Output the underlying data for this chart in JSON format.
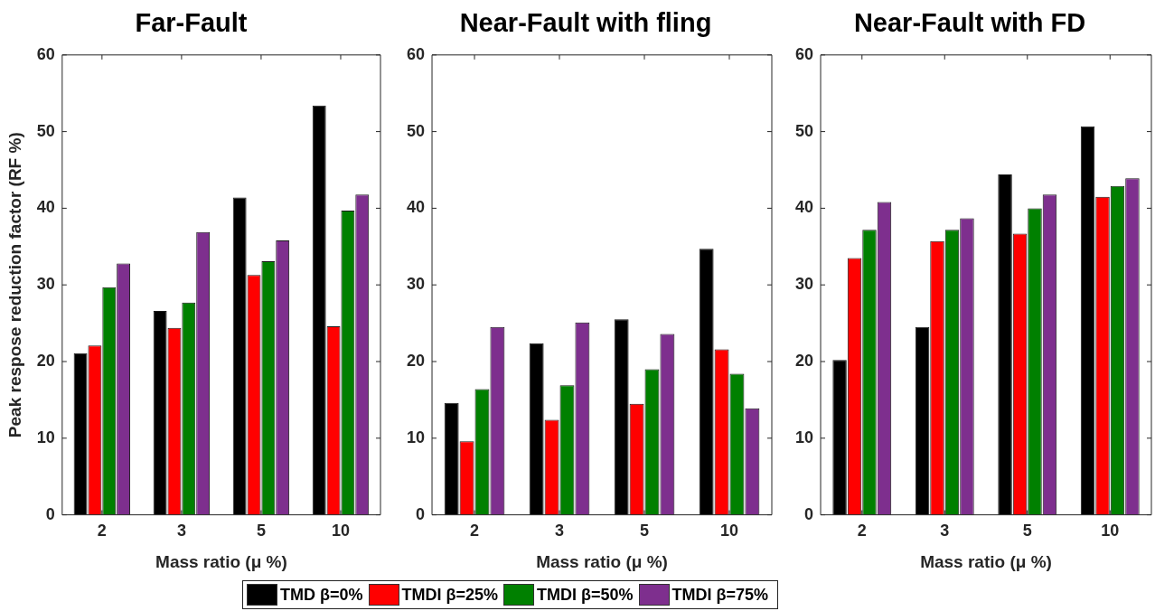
{
  "chart_data": [
    {
      "type": "bar",
      "title": "Far-Fault",
      "xlabel": "Mass ratio (μ %)",
      "ylabel": "Peak respose reduction factor (RF %)",
      "categories": [
        "2",
        "3",
        "5",
        "10"
      ],
      "ylim": [
        0,
        60
      ],
      "yticks": [
        0,
        10,
        20,
        30,
        40,
        50,
        60
      ],
      "grid": false,
      "legend": "bottom",
      "series": [
        {
          "name": "TMD β=0%",
          "color": "#000000",
          "values": [
            21.1,
            26.6,
            41.4,
            53.4
          ]
        },
        {
          "name": "TMDI β=25%",
          "color": "#ff0000",
          "values": [
            22.1,
            24.4,
            31.3,
            24.6
          ]
        },
        {
          "name": "TMDI β=50%",
          "color": "#008000",
          "values": [
            29.7,
            27.7,
            33.1,
            39.7
          ]
        },
        {
          "name": "TMDI β=75%",
          "color": "#7e2f8e",
          "values": [
            32.8,
            36.9,
            35.8,
            41.8
          ]
        }
      ]
    },
    {
      "type": "bar",
      "title": "Near-Fault with fling",
      "xlabel": "Mass ratio (μ %)",
      "categories": [
        "2",
        "3",
        "5",
        "10"
      ],
      "ylim": [
        0,
        60
      ],
      "yticks": [
        0,
        10,
        20,
        30,
        40,
        50,
        60
      ],
      "grid": false,
      "series": [
        {
          "color": "#000000",
          "values": [
            14.6,
            22.4,
            25.5,
            34.7
          ]
        },
        {
          "color": "#ff0000",
          "values": [
            9.6,
            12.4,
            14.5,
            21.6
          ]
        },
        {
          "color": "#008000",
          "values": [
            16.4,
            16.9,
            19.0,
            18.4
          ]
        },
        {
          "color": "#7e2f8e",
          "values": [
            24.5,
            25.1,
            23.6,
            13.9
          ]
        }
      ]
    },
    {
      "type": "bar",
      "title": "Near-Fault with FD",
      "xlabel": "Mass ratio (μ %)",
      "categories": [
        "2",
        "3",
        "5",
        "10"
      ],
      "ylim": [
        0,
        60
      ],
      "yticks": [
        0,
        10,
        20,
        30,
        40,
        50,
        60
      ],
      "grid": false,
      "series": [
        {
          "color": "#000000",
          "values": [
            20.2,
            24.5,
            44.4,
            50.7
          ]
        },
        {
          "color": "#ff0000",
          "values": [
            33.5,
            35.7,
            36.7,
            41.5
          ]
        },
        {
          "color": "#008000",
          "values": [
            37.2,
            37.2,
            40.0,
            42.9
          ]
        },
        {
          "color": "#7e2f8e",
          "values": [
            40.8,
            38.7,
            41.8,
            43.9
          ]
        }
      ]
    }
  ]
}
